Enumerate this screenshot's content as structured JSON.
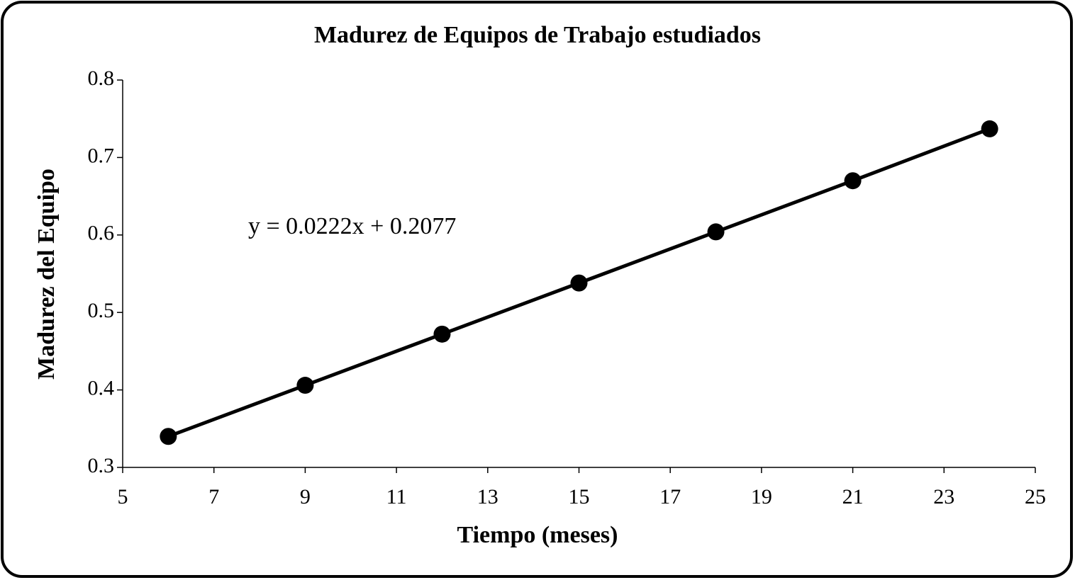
{
  "chart_data": {
    "type": "scatter-line",
    "title": "Madurez de Equipos de Trabajo  estudiados",
    "x_label": "Tiempo  (meses)",
    "y_label": "Madurez  del Equipo",
    "annotation": "y = 0.0222x  + 0.2077",
    "x": [
      6,
      9,
      12,
      15,
      18,
      21,
      24
    ],
    "series": [
      {
        "name": "Madurez",
        "color": "#000000",
        "values": [
          0.34,
          0.406,
          0.472,
          0.538,
          0.604,
          0.67,
          0.737
        ]
      }
    ],
    "xlim": [
      5,
      25
    ],
    "xticks": [
      5,
      7,
      9,
      11,
      13,
      15,
      17,
      19,
      21,
      23,
      25
    ],
    "ylim": [
      0.3,
      0.8
    ],
    "yticks": [
      0.3,
      0.4,
      0.5,
      0.6,
      0.7,
      0.8
    ],
    "grid": false
  }
}
